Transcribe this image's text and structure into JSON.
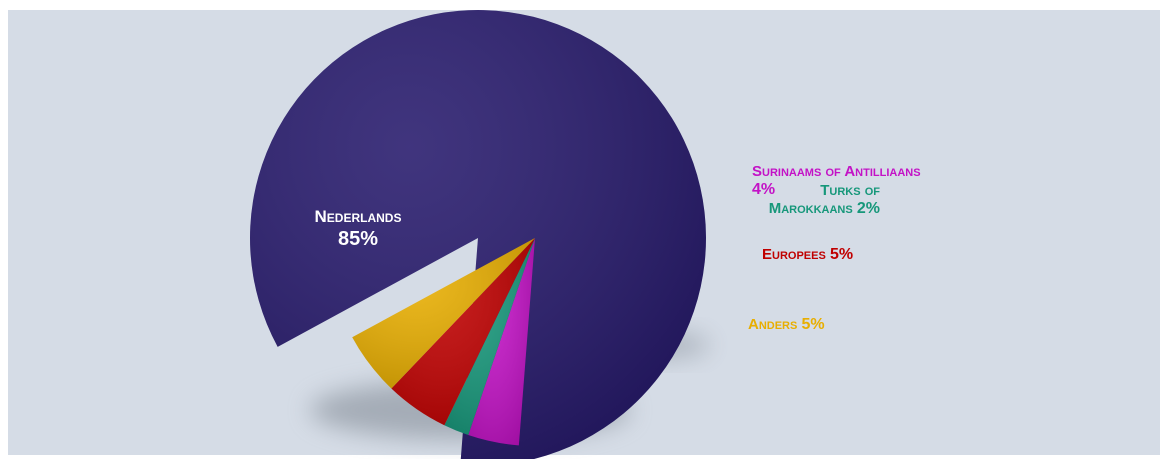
{
  "chart_data": {
    "type": "pie",
    "categories": [
      "Nederlands",
      "Surinaams of Antilliaans",
      "Turks of Marokkaans",
      "Europees",
      "Anders"
    ],
    "values": [
      85,
      4,
      2,
      5,
      5
    ],
    "value_labels": [
      "85%",
      "4%",
      "2%",
      "5%",
      "5%"
    ],
    "colors": [
      "#26196c",
      "#c312c6",
      "#16977a",
      "#c00000",
      "#e8ae00"
    ],
    "exploded": [
      false,
      true,
      true,
      true,
      true
    ]
  }
}
